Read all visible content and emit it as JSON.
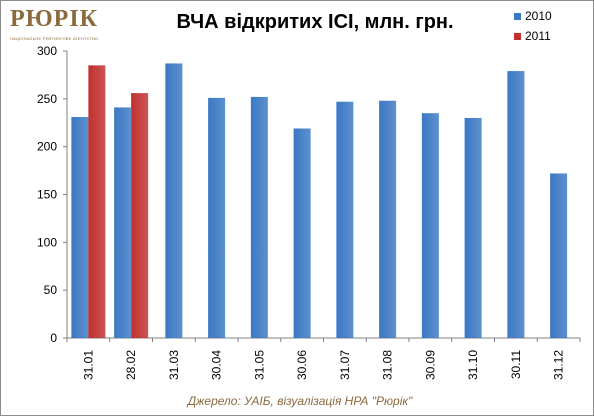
{
  "logo": {
    "text": "РЮРІК",
    "tagline": "НАЦІОНАЛЬНЕ РЕЙТИНГОВЕ АГЕНТСТВО"
  },
  "colors": {
    "series_2010": "#3a78c3",
    "series_2011": "#c0302f",
    "brand": "#8b6a3e"
  },
  "chart_data": {
    "type": "bar",
    "title": "ВЧА відкритих ІСІ, млн. грн.",
    "xlabel": "",
    "ylabel": "",
    "ylim": [
      0,
      300
    ],
    "yticks": [
      0,
      50,
      100,
      150,
      200,
      250,
      300
    ],
    "grid": false,
    "legend": "top-right",
    "categories": [
      "31.01",
      "28.02",
      "31.03",
      "30.04",
      "31.05",
      "30.06",
      "31.07",
      "31.08",
      "30.09",
      "31.10",
      "30.11",
      "31.12"
    ],
    "series": [
      {
        "name": "2010",
        "values": [
          231,
          241,
          287,
          251,
          252,
          219,
          247,
          248,
          235,
          230,
          279,
          172
        ]
      },
      {
        "name": "2011",
        "values": [
          285,
          256,
          null,
          null,
          null,
          null,
          null,
          null,
          null,
          null,
          null,
          null
        ]
      }
    ]
  },
  "source": "Джерело: УАІБ, візуалізація НРА \"Рюрік\""
}
